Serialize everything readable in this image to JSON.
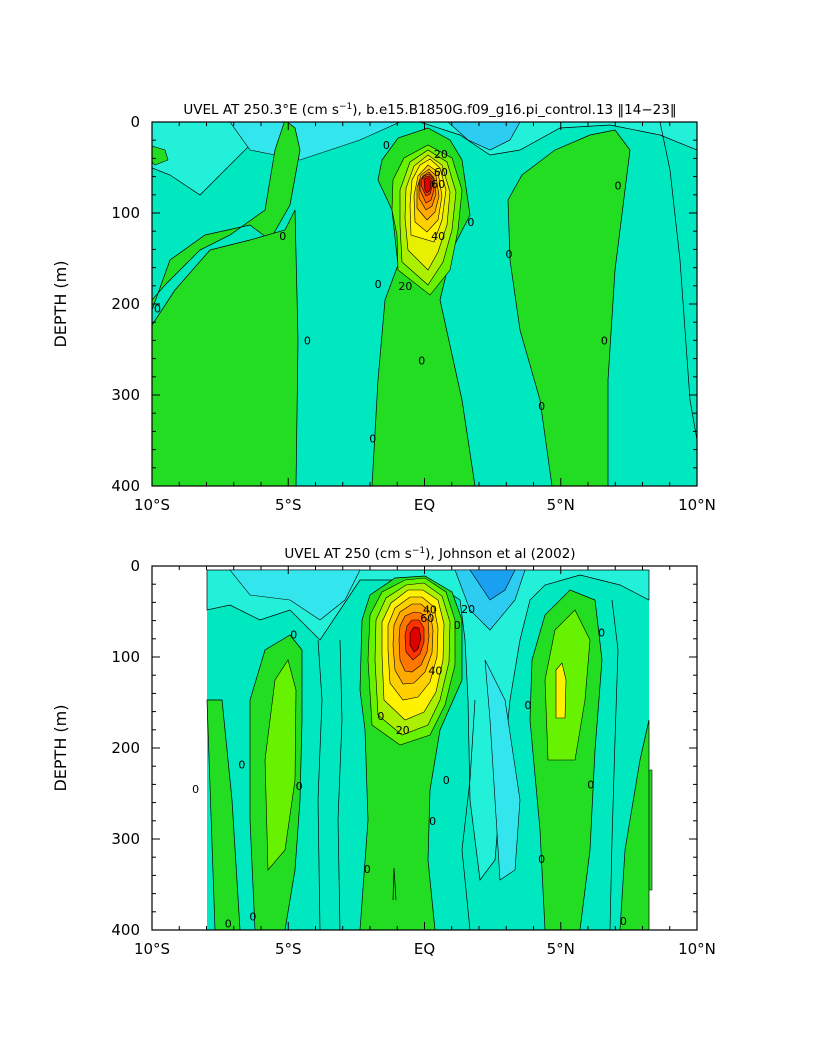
{
  "chart_data": [
    {
      "type": "contour",
      "title_pre": "UVEL AT 250.3°E (cm s",
      "title_sup": "−1",
      "title_post": "), b.e15.B1850G.f09_g16.pi_control.13 ‖14−23‖",
      "xlabel": "",
      "ylabel": "DEPTH (m)",
      "xlim": [
        -10,
        10
      ],
      "ylim": [
        400,
        0
      ],
      "x_ticks": [
        -10,
        -5,
        0,
        5,
        10
      ],
      "x_tick_labels": [
        "10°S",
        "5°S",
        "EQ",
        "5°N",
        "10°N"
      ],
      "y_ticks": [
        0,
        100,
        200,
        300,
        400
      ],
      "y_tick_labels": [
        "0",
        "100",
        "200",
        "300",
        "400"
      ],
      "data_lon_range": [
        -10,
        10
      ],
      "contour_labels": [
        {
          "text": "20",
          "lat": 0.6,
          "depth": 35
        },
        {
          "text": "60",
          "lat": 0.6,
          "depth": 55
        },
        {
          "text": "60",
          "lat": 0.5,
          "depth": 68
        },
        {
          "text": "40",
          "lat": 0.5,
          "depth": 125
        },
        {
          "text": "20",
          "lat": -0.7,
          "depth": 180
        },
        {
          "text": "0",
          "lat": -1.4,
          "depth": 25
        },
        {
          "text": "0",
          "lat": 1.7,
          "depth": 110
        },
        {
          "text": "0",
          "lat": 3.1,
          "depth": 145
        },
        {
          "text": "0",
          "lat": 7.1,
          "depth": 70
        },
        {
          "text": "0",
          "lat": -5.2,
          "depth": 125
        },
        {
          "text": "0",
          "lat": -9.8,
          "depth": 205
        },
        {
          "text": "0",
          "lat": -4.3,
          "depth": 240
        },
        {
          "text": "0",
          "lat": -1.7,
          "depth": 178
        },
        {
          "text": "0",
          "lat": -0.1,
          "depth": 262
        },
        {
          "text": "0",
          "lat": 6.6,
          "depth": 240
        },
        {
          "text": "0",
          "lat": 4.3,
          "depth": 312
        },
        {
          "text": "0",
          "lat": -1.9,
          "depth": 348
        }
      ]
    },
    {
      "type": "contour",
      "title_pre": "UVEL AT 250 (cm s",
      "title_sup": "−1",
      "title_post": "), Johnson et al (2002)",
      "xlabel": "",
      "ylabel": "DEPTH (m)",
      "xlim": [
        -10,
        10
      ],
      "ylim": [
        400,
        0
      ],
      "x_ticks": [
        -10,
        -5,
        0,
        5,
        10
      ],
      "x_tick_labels": [
        "10°S",
        "5°S",
        "EQ",
        "5°N",
        "10°N"
      ],
      "y_ticks": [
        0,
        100,
        200,
        300,
        400
      ],
      "y_tick_labels": [
        "0",
        "100",
        "200",
        "300",
        "400"
      ],
      "data_lon_range": [
        -8,
        8.2
      ],
      "contour_labels": [
        {
          "text": "40",
          "lat": 0.2,
          "depth": 48
        },
        {
          "text": "60",
          "lat": 0.1,
          "depth": 57
        },
        {
          "text": "20",
          "lat": 1.6,
          "depth": 47
        },
        {
          "text": "40",
          "lat": 0.4,
          "depth": 115
        },
        {
          "text": "20",
          "lat": -0.8,
          "depth": 180
        },
        {
          "text": "0",
          "lat": 1.2,
          "depth": 65
        },
        {
          "text": "0",
          "lat": -4.8,
          "depth": 75
        },
        {
          "text": "0",
          "lat": -6.7,
          "depth": 218
        },
        {
          "text": "0",
          "lat": -8.4,
          "depth": 245
        },
        {
          "text": "0",
          "lat": -4.6,
          "depth": 242
        },
        {
          "text": "0",
          "lat": -1.6,
          "depth": 165
        },
        {
          "text": "0",
          "lat": 3.8,
          "depth": 153
        },
        {
          "text": "0",
          "lat": 6.5,
          "depth": 73
        },
        {
          "text": "0",
          "lat": 6.1,
          "depth": 240
        },
        {
          "text": "0",
          "lat": 0.8,
          "depth": 235
        },
        {
          "text": "0",
          "lat": 0.3,
          "depth": 280
        },
        {
          "text": "0",
          "lat": -2.1,
          "depth": 333
        },
        {
          "text": "0",
          "lat": 4.3,
          "depth": 322
        },
        {
          "text": "0",
          "lat": -6.3,
          "depth": 385
        },
        {
          "text": "0",
          "lat": -7.2,
          "depth": 393
        },
        {
          "text": "0",
          "lat": 7.3,
          "depth": 390
        }
      ]
    }
  ]
}
